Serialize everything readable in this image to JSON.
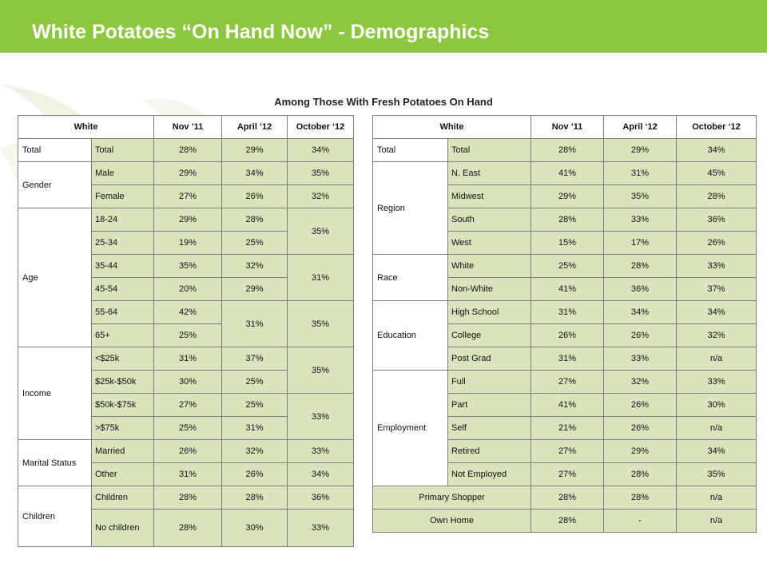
{
  "header": {
    "title": "White Potatoes “On Hand Now” -  Demographics",
    "bar_color": "#8dc63f"
  },
  "subtitle": "Among Those With Fresh Potatoes On Hand",
  "left_table": {
    "headers": [
      "White",
      "Nov ’11",
      "April ’12",
      "October ‘12"
    ],
    "rows": {
      "total": {
        "group": "Total",
        "label": "Total",
        "nov": "28%",
        "apr": "29%",
        "oct": "34%"
      },
      "male": {
        "group": "Gender",
        "label": "Male",
        "nov": "29%",
        "apr": "34%",
        "oct": "35%"
      },
      "female": {
        "label": "Female",
        "nov": "27%",
        "apr": "26%",
        "oct": "32%"
      },
      "a1824": {
        "group": "Age",
        "label": "18-24",
        "nov": "29%",
        "apr": "28%",
        "oct": "35%"
      },
      "a2534": {
        "label": "25-34",
        "nov": "19%",
        "apr": "25%"
      },
      "a3544": {
        "label": "35-44",
        "nov": "35%",
        "apr": "32%",
        "oct": "31%"
      },
      "a4554": {
        "label": "45-54",
        "nov": "20%",
        "apr": "29%"
      },
      "a5564": {
        "label": "55-64",
        "nov": "42%",
        "apr": "31%",
        "oct": "35%"
      },
      "a65": {
        "label": "65+",
        "nov": "25%"
      },
      "i1": {
        "group": "Income",
        "label": "<$25k",
        "nov": "31%",
        "apr": "37%",
        "oct": "35%"
      },
      "i2": {
        "label": "$25k-$50k",
        "nov": "30%",
        "apr": "25%"
      },
      "i3": {
        "label": "$50k-$75k",
        "nov": "27%",
        "apr": "25%",
        "oct": "33%"
      },
      "i4": {
        "label": ">$75k",
        "nov": "25%",
        "apr": "31%"
      },
      "married": {
        "group": "Marital Status",
        "label": "Married",
        "nov": "26%",
        "apr": "32%",
        "oct": "33%"
      },
      "other": {
        "label": "Other",
        "nov": "31%",
        "apr": "26%",
        "oct": "34%"
      },
      "children": {
        "group": "Children",
        "label": "Children",
        "nov": "28%",
        "apr": "28%",
        "oct": "36%"
      },
      "nochildren": {
        "label": "No children",
        "nov": "28%",
        "apr": "30%",
        "oct": "33%"
      }
    }
  },
  "right_table": {
    "headers": [
      "White",
      "Nov ’11",
      "April ‘12",
      "October ‘12"
    ],
    "rows": {
      "total": {
        "group": "Total",
        "label": "Total",
        "nov": "28%",
        "apr": "29%",
        "oct": "34%"
      },
      "neast": {
        "group": "Region",
        "label": "N. East",
        "nov": "41%",
        "apr": "31%",
        "oct": "45%"
      },
      "midwest": {
        "label": "Midwest",
        "nov": "29%",
        "apr": "35%",
        "oct": "28%"
      },
      "south": {
        "label": "South",
        "nov": "28%",
        "apr": "33%",
        "oct": "36%"
      },
      "west": {
        "label": "West",
        "nov": "15%",
        "apr": "17%",
        "oct": "26%"
      },
      "white": {
        "group": "Race",
        "label": "White",
        "nov": "25%",
        "apr": "28%",
        "oct": "33%"
      },
      "nonwhite": {
        "label": "Non-White",
        "nov": "41%",
        "apr": "36%",
        "oct": "37%"
      },
      "hs": {
        "group": "Education",
        "label": "High School",
        "nov": "31%",
        "apr": "34%",
        "oct": "34%"
      },
      "college": {
        "label": "College",
        "nov": "26%",
        "apr": "26%",
        "oct": "32%"
      },
      "postgrad": {
        "label": "Post Grad",
        "nov": "31%",
        "apr": "33%",
        "oct": "n/a"
      },
      "full": {
        "group": "Employment",
        "label": "Full",
        "nov": "27%",
        "apr": "32%",
        "oct": "33%"
      },
      "part": {
        "label": "Part",
        "nov": "41%",
        "apr": "26%",
        "oct": "30%"
      },
      "self": {
        "label": "Self",
        "nov": "21%",
        "apr": "26%",
        "oct": "n/a"
      },
      "retired": {
        "label": "Retired",
        "nov": "27%",
        "apr": "29%",
        "oct": "34%"
      },
      "notemployed": {
        "label": "Not Employed",
        "nov": "27%",
        "apr": "28%",
        "oct": "35%"
      },
      "primary": {
        "label": "Primary Shopper",
        "nov": "28%",
        "apr": "28%",
        "oct": "n/a"
      },
      "ownhome": {
        "label": "Own Home",
        "nov": "28%",
        "apr": "-",
        "oct": "n/a"
      }
    }
  }
}
